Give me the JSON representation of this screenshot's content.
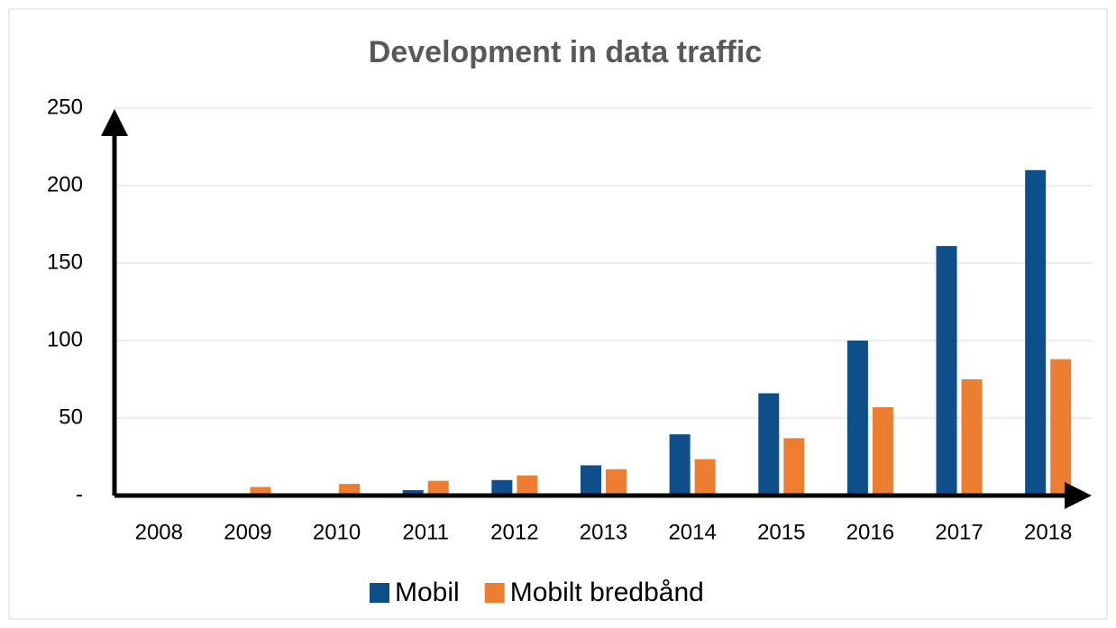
{
  "chart_data": {
    "type": "bar",
    "title": "Development in data traffic",
    "categories": [
      "2008",
      "2009",
      "2010",
      "2011",
      "2012",
      "2013",
      "2014",
      "2015",
      "2016",
      "2017",
      "2018"
    ],
    "series": [
      {
        "name": "Mobil",
        "color": "#0e4f8b",
        "values": [
          0.3,
          0.5,
          0.8,
          3.5,
          10,
          19.5,
          39.5,
          66,
          100,
          161,
          210
        ]
      },
      {
        "name": "Mobilt bredbånd",
        "color": "#ed7d31",
        "values": [
          1,
          5.5,
          7.5,
          9.5,
          13,
          17,
          23.5,
          37,
          57,
          75,
          88
        ]
      }
    ],
    "ylim": [
      0,
      250
    ],
    "yticks": [
      {
        "value": 0,
        "label": "-"
      },
      50,
      100,
      150,
      200,
      250
    ],
    "grid": true,
    "legend": "bottom"
  }
}
